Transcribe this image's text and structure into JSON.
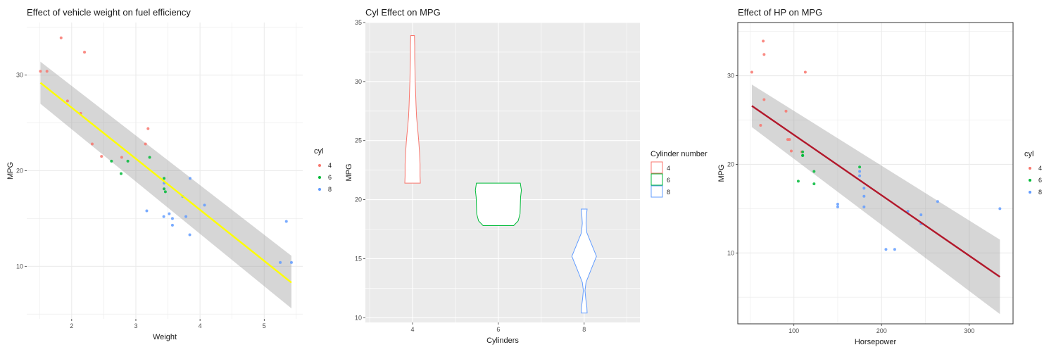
{
  "chart_data": [
    {
      "type": "scatter",
      "title": "Effect of vehicle weight on fuel efficiency",
      "xlabel": "Weight",
      "ylabel": "MPG",
      "xlim": [
        1.3,
        5.6
      ],
      "ylim": [
        4.5,
        35.5
      ],
      "xticks": [
        2,
        3,
        4,
        5
      ],
      "yticks": [
        10,
        20,
        30
      ],
      "grid": true,
      "legend": {
        "title": "cyl",
        "position": "right",
        "entries": [
          "4",
          "6",
          "8"
        ]
      },
      "series": [
        {
          "name": "4",
          "color": "#f8766d",
          "points": [
            [
              2.32,
              22.8
            ],
            [
              3.19,
              24.4
            ],
            [
              3.15,
              22.8
            ],
            [
              2.2,
              32.4
            ],
            [
              1.615,
              30.4
            ],
            [
              1.835,
              33.9
            ],
            [
              2.465,
              21.5
            ],
            [
              1.935,
              27.3
            ],
            [
              2.14,
              26.0
            ],
            [
              1.513,
              30.4
            ],
            [
              2.78,
              21.4
            ]
          ]
        },
        {
          "name": "6",
          "color": "#00ba38",
          "points": [
            [
              2.62,
              21.0
            ],
            [
              2.875,
              21.0
            ],
            [
              3.215,
              21.4
            ],
            [
              3.44,
              18.1
            ],
            [
              3.44,
              19.2
            ],
            [
              3.46,
              17.8
            ],
            [
              2.77,
              19.7
            ]
          ]
        },
        {
          "name": "8",
          "color": "#619cff",
          "points": [
            [
              3.44,
              18.7
            ],
            [
              3.57,
              14.3
            ],
            [
              4.07,
              16.4
            ],
            [
              3.73,
              17.3
            ],
            [
              3.78,
              15.2
            ],
            [
              5.25,
              10.4
            ],
            [
              5.424,
              10.4
            ],
            [
              5.345,
              14.7
            ],
            [
              3.52,
              15.5
            ],
            [
              3.435,
              15.2
            ],
            [
              3.84,
              13.3
            ],
            [
              3.845,
              19.2
            ],
            [
              3.17,
              15.8
            ],
            [
              3.57,
              15.0
            ]
          ]
        }
      ],
      "fit": {
        "label": "lm",
        "color": "#ffff00",
        "x": [
          1.513,
          5.424
        ],
        "y": [
          29.2,
          8.3
        ],
        "band_upper": [
          31.4,
          11.1
        ],
        "band_lower": [
          27.0,
          5.6
        ]
      }
    },
    {
      "type": "violin",
      "title": "Cyl Effect on MPG",
      "xlabel": "Cylinders",
      "ylabel": "MPG",
      "xlim": [
        2.9,
        9.3
      ],
      "ylim": [
        9.6,
        35.0
      ],
      "xticks": [
        4,
        6,
        8
      ],
      "yticks": [
        10,
        15,
        20,
        25,
        30,
        35
      ],
      "grid": true,
      "legend": {
        "title": "Cylinder number",
        "position": "right",
        "entries": [
          "4",
          "6",
          "8"
        ]
      },
      "violins": [
        {
          "name": "4",
          "x": 4,
          "color": "#f8766d",
          "profile": [
            [
              21.4,
              0.29
            ],
            [
              22.0,
              0.28
            ],
            [
              23.0,
              0.28
            ],
            [
              24.0,
              0.26
            ],
            [
              25.0,
              0.23
            ],
            [
              26.0,
              0.19
            ],
            [
              27.0,
              0.15
            ],
            [
              28.0,
              0.13
            ],
            [
              30.0,
              0.1
            ],
            [
              32.0,
              0.08
            ],
            [
              33.0,
              0.08
            ],
            [
              33.9,
              0.07
            ]
          ]
        },
        {
          "name": "6",
          "x": 6,
          "color": "#00ba38",
          "profile": [
            [
              17.8,
              0.57
            ],
            [
              18.2,
              0.74
            ],
            [
              18.8,
              0.81
            ],
            [
              19.5,
              0.82
            ],
            [
              20.2,
              0.83
            ],
            [
              20.8,
              0.86
            ],
            [
              21.4,
              0.82
            ]
          ]
        },
        {
          "name": "8",
          "x": 8,
          "color": "#619cff",
          "profile": [
            [
              10.4,
              0.11
            ],
            [
              10.9,
              0.1
            ],
            [
              11.6,
              0.06
            ],
            [
              12.3,
              0.03
            ],
            [
              13.0,
              0.07
            ],
            [
              14.2,
              0.28
            ],
            [
              15.2,
              0.46
            ],
            [
              16.2,
              0.28
            ],
            [
              17.2,
              0.1
            ],
            [
              18.0,
              0.07
            ],
            [
              18.8,
              0.09
            ],
            [
              19.2,
              0.11
            ]
          ]
        }
      ]
    },
    {
      "type": "scatter",
      "title": "Effect of HP on MPG",
      "xlabel": "Horsepower",
      "ylabel": "MPG",
      "xlim": [
        36,
        350
      ],
      "ylim": [
        2.0,
        36.0
      ],
      "xticks": [
        100,
        200,
        300
      ],
      "yticks": [
        10,
        20,
        30
      ],
      "grid": true,
      "legend": {
        "title": "cyl",
        "position": "right",
        "entries": [
          "4",
          "6",
          "8"
        ]
      },
      "series": [
        {
          "name": "4",
          "color": "#f8766d",
          "points": [
            [
              93,
              22.8
            ],
            [
              62,
              24.4
            ],
            [
              95,
              22.8
            ],
            [
              66,
              32.4
            ],
            [
              52,
              30.4
            ],
            [
              65,
              33.9
            ],
            [
              97,
              21.5
            ],
            [
              66,
              27.3
            ],
            [
              91,
              26.0
            ],
            [
              113,
              30.4
            ],
            [
              109,
              21.4
            ]
          ]
        },
        {
          "name": "6",
          "color": "#00ba38",
          "points": [
            [
              110,
              21.0
            ],
            [
              110,
              21.0
            ],
            [
              110,
              21.4
            ],
            [
              105,
              18.1
            ],
            [
              123,
              19.2
            ],
            [
              123,
              17.8
            ],
            [
              175,
              19.7
            ]
          ]
        },
        {
          "name": "8",
          "color": "#619cff",
          "points": [
            [
              175,
              18.7
            ],
            [
              245,
              14.3
            ],
            [
              180,
              16.4
            ],
            [
              180,
              17.3
            ],
            [
              180,
              15.2
            ],
            [
              205,
              10.4
            ],
            [
              215,
              10.4
            ],
            [
              230,
              14.7
            ],
            [
              150,
              15.5
            ],
            [
              150,
              15.2
            ],
            [
              245,
              13.3
            ],
            [
              175,
              19.2
            ],
            [
              264,
              15.8
            ],
            [
              335,
              15.0
            ]
          ]
        }
      ],
      "fit": {
        "label": "lm",
        "color": "#b2182b",
        "x": [
          52,
          335
        ],
        "y": [
          26.6,
          7.3
        ],
        "band_upper": [
          29.0,
          11.5
        ],
        "band_lower": [
          24.2,
          3.1
        ]
      }
    }
  ]
}
